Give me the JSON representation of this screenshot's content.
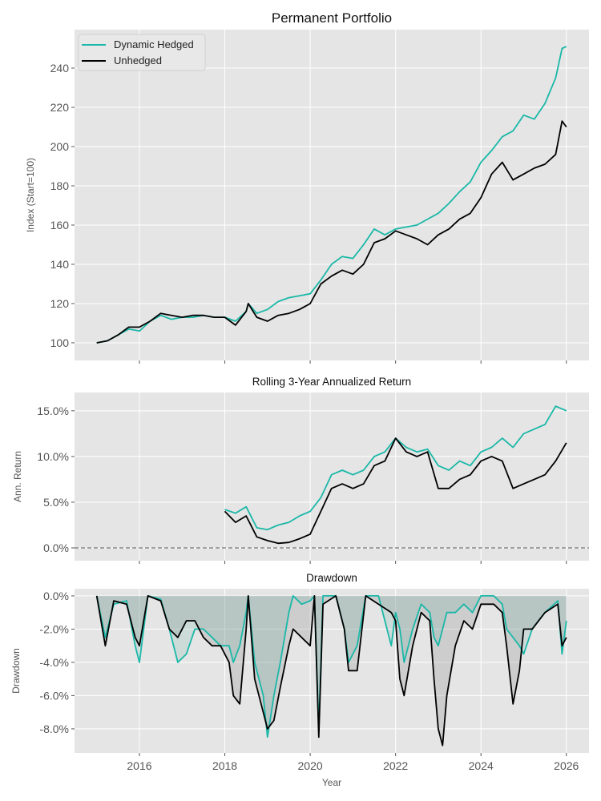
{
  "chart_data": [
    {
      "type": "line",
      "title": "Permanent Portfolio",
      "xlabel": "",
      "ylabel": "Index (Start=100)",
      "xlim": [
        2014.48,
        2026.53
      ],
      "ylim": [
        91,
        259.6
      ],
      "yticks": [
        100,
        120,
        140,
        160,
        180,
        200,
        220,
        240
      ],
      "ytick_labels": [
        "100",
        "120",
        "140",
        "160",
        "180",
        "200",
        "220",
        "240"
      ],
      "grid": true,
      "legend": "top-left",
      "x": [
        2015.0,
        2015.25,
        2015.5,
        2015.75,
        2016.0,
        2016.25,
        2016.5,
        2016.75,
        2017.0,
        2017.25,
        2017.5,
        2017.75,
        2018.0,
        2018.25,
        2018.5,
        2018.55,
        2018.75,
        2019.0,
        2019.25,
        2019.5,
        2019.75,
        2020.0,
        2020.25,
        2020.5,
        2020.75,
        2021.0,
        2021.25,
        2021.5,
        2021.75,
        2022.0,
        2022.25,
        2022.5,
        2022.75,
        2023.0,
        2023.25,
        2023.5,
        2023.75,
        2024.0,
        2024.25,
        2024.5,
        2024.75,
        2025.0,
        2025.25,
        2025.5,
        2025.75,
        2025.9,
        2026.0
      ],
      "series": [
        {
          "name": "Dynamic Hedged",
          "color": "#1ab8a8",
          "values": [
            100,
            101,
            104,
            107,
            106,
            111,
            114,
            112,
            113,
            113,
            114,
            113,
            113,
            111,
            116,
            120,
            115,
            117,
            121,
            123,
            124,
            125,
            132,
            140,
            144,
            143,
            150,
            158,
            155,
            158,
            159,
            160,
            163,
            166,
            171,
            177,
            182,
            192,
            198,
            205,
            208,
            216,
            214,
            222,
            235,
            250,
            251
          ]
        },
        {
          "name": "Unhedged",
          "color": "#000000",
          "values": [
            100,
            101,
            104,
            108,
            108,
            111,
            115,
            114,
            113,
            114,
            114,
            113,
            113,
            109,
            116,
            120,
            113,
            111,
            114,
            115,
            117,
            120,
            130,
            134,
            137,
            135,
            140,
            151,
            153,
            157,
            155,
            153,
            150,
            155,
            158,
            163,
            166,
            174,
            186,
            192,
            183,
            186,
            189,
            191,
            196,
            213,
            210
          ]
        }
      ]
    },
    {
      "type": "line",
      "title": "Rolling 3-Year Annualized Return",
      "xlabel": "",
      "ylabel": "Ann. Return",
      "xlim": [
        2014.48,
        2026.53
      ],
      "ylim": [
        -1.4,
        17.0
      ],
      "yticks": [
        0,
        5,
        10,
        15
      ],
      "ytick_labels": [
        "0.0%",
        "5.0%",
        "10.0%",
        "15.0%"
      ],
      "reference_line": {
        "y": 0,
        "style": "dashed"
      },
      "grid": true,
      "x": [
        2018.0,
        2018.25,
        2018.5,
        2018.75,
        2019.0,
        2019.25,
        2019.5,
        2019.75,
        2020.0,
        2020.25,
        2020.5,
        2020.75,
        2021.0,
        2021.25,
        2021.5,
        2021.75,
        2022.0,
        2022.25,
        2022.5,
        2022.75,
        2023.0,
        2023.25,
        2023.5,
        2023.75,
        2024.0,
        2024.25,
        2024.5,
        2024.75,
        2025.0,
        2025.25,
        2025.5,
        2025.75,
        2026.0
      ],
      "series": [
        {
          "name": "Dynamic Hedged",
          "color": "#1ab8a8",
          "values": [
            4.2,
            3.8,
            4.5,
            2.2,
            2.0,
            2.5,
            2.8,
            3.5,
            4.0,
            5.5,
            8.0,
            8.5,
            8.0,
            8.5,
            10.0,
            10.5,
            12.0,
            11.0,
            10.5,
            10.8,
            9.0,
            8.5,
            9.5,
            9.0,
            10.5,
            11.0,
            12.0,
            11.0,
            12.5,
            13.0,
            13.5,
            15.5,
            15.0
          ]
        },
        {
          "name": "Unhedged",
          "color": "#000000",
          "values": [
            4.0,
            2.8,
            3.5,
            1.2,
            0.8,
            0.5,
            0.6,
            1.0,
            1.5,
            4.0,
            6.5,
            7.0,
            6.5,
            7.0,
            9.0,
            9.5,
            12.0,
            10.5,
            10.0,
            10.5,
            6.5,
            6.5,
            7.5,
            8.0,
            9.5,
            10.0,
            9.5,
            6.5,
            7.0,
            7.5,
            8.0,
            9.5,
            11.5
          ]
        }
      ]
    },
    {
      "type": "area",
      "title": "Drawdown",
      "xlabel": "Year",
      "ylabel": "Drawdown",
      "xlim": [
        2014.48,
        2026.53
      ],
      "ylim": [
        -9.45,
        0.43
      ],
      "yticks": [
        0,
        -2,
        -4,
        -6,
        -8
      ],
      "ytick_labels": [
        "0.0%",
        "-2.0%",
        "-4.0%",
        "-6.0%",
        "-8.0%"
      ],
      "xticks": [
        2016,
        2018,
        2020,
        2022,
        2024,
        2026
      ],
      "xtick_labels": [
        "2016",
        "2018",
        "2020",
        "2022",
        "2024",
        "2026"
      ],
      "grid": true,
      "x": [
        2015.0,
        2015.2,
        2015.4,
        2015.7,
        2015.9,
        2016.0,
        2016.2,
        2016.5,
        2016.7,
        2016.9,
        2017.1,
        2017.3,
        2017.5,
        2017.7,
        2017.9,
        2018.1,
        2018.2,
        2018.35,
        2018.5,
        2018.55,
        2018.7,
        2018.9,
        2019.0,
        2019.15,
        2019.3,
        2019.5,
        2019.6,
        2019.8,
        2020.0,
        2020.1,
        2020.2,
        2020.3,
        2020.6,
        2020.8,
        2020.9,
        2021.1,
        2021.3,
        2021.6,
        2021.9,
        2022.0,
        2022.1,
        2022.2,
        2022.4,
        2022.6,
        2022.8,
        2022.9,
        2023.0,
        2023.1,
        2023.2,
        2023.4,
        2023.6,
        2023.8,
        2024.0,
        2024.3,
        2024.5,
        2024.6,
        2024.75,
        2024.9,
        2025.0,
        2025.2,
        2025.5,
        2025.8,
        2025.9,
        2026.0
      ],
      "series": [
        {
          "name": "Dynamic Hedged",
          "color": "#1ab8a8",
          "values": [
            0,
            -2.5,
            -0.5,
            -0.3,
            -3,
            -4,
            0,
            -0.2,
            -2,
            -4,
            -3.5,
            -2,
            -2,
            -2.5,
            -3,
            -3,
            -4,
            -3,
            -1,
            0,
            -4,
            -6,
            -8.5,
            -6,
            -4,
            -1,
            0,
            -0.5,
            -0.3,
            0,
            -8,
            0,
            0,
            -2,
            -4,
            -3,
            0,
            0,
            -3,
            -1,
            -2,
            -4,
            -2,
            -0.5,
            -1,
            -2.5,
            -3,
            -2,
            -1,
            -1,
            -0.5,
            -1,
            0,
            0,
            -0.5,
            -2,
            -2.5,
            -3,
            -3.5,
            -2,
            -1,
            -0.3,
            -3.5,
            -1.5
          ]
        },
        {
          "name": "Unhedged",
          "color": "#000000",
          "values": [
            0,
            -3,
            -0.3,
            -0.5,
            -2.5,
            -3,
            0,
            -0.3,
            -2,
            -2.5,
            -1.5,
            -1.5,
            -2.5,
            -3,
            -3,
            -4,
            -6,
            -6.5,
            -2,
            0,
            -5,
            -7,
            -8,
            -7.5,
            -5.5,
            -3,
            -2,
            -2.5,
            -3,
            0,
            -8.5,
            -0.5,
            0,
            -2,
            -4.5,
            -4.5,
            0,
            -0.5,
            -1,
            -1.5,
            -5,
            -6,
            -3,
            -1,
            -1.5,
            -5,
            -8,
            -9,
            -6,
            -3,
            -1.5,
            -2,
            -0.5,
            -0.5,
            -1,
            -3,
            -6.5,
            -4.5,
            -2,
            -2,
            -1,
            -0.5,
            -3,
            -2.5
          ]
        }
      ]
    }
  ],
  "colors": {
    "panel_bg": "#e5e5e5",
    "grid": "#ffffff",
    "hedged": "#1ab8a8",
    "unhedged": "#000000"
  }
}
